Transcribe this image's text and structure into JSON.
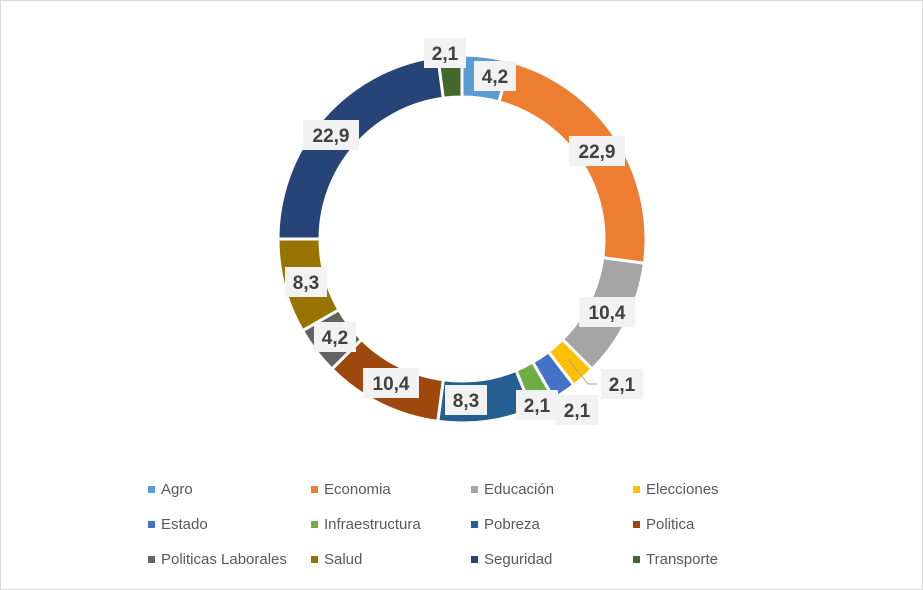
{
  "chart_data": {
    "type": "pie",
    "variant": "donut",
    "title": "",
    "categories": [
      "Agro",
      "Economia",
      "Educación",
      "Elecciones",
      "Estado",
      "Infraestructura",
      "Pobreza",
      "Politica",
      "Politicas Laborales",
      "Salud",
      "Seguridad",
      "Transporte"
    ],
    "values": [
      4.2,
      22.9,
      10.4,
      2.1,
      2.1,
      2.1,
      8.3,
      10.4,
      4.2,
      8.3,
      22.9,
      2.1
    ],
    "data_labels": [
      "4,2",
      "22,9",
      "10,4",
      "2,1",
      "2,1",
      "2,1",
      "8,3",
      "10,4",
      "4,2",
      "8,3",
      "22,9",
      "2,1"
    ],
    "colors": [
      "#5B9BD5",
      "#ED7D31",
      "#A5A5A5",
      "#FFC000",
      "#4472C4",
      "#70AD47",
      "#255E91",
      "#9E480E",
      "#636363",
      "#997300",
      "#264478",
      "#43682B"
    ],
    "legend_position": "bottom"
  }
}
